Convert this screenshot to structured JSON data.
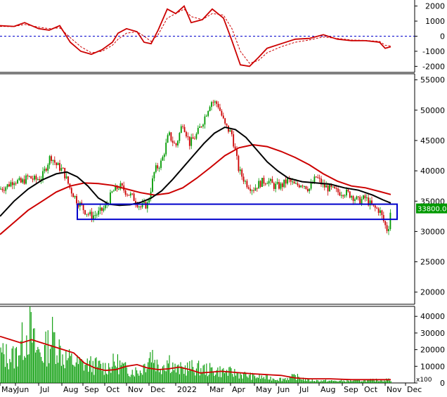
{
  "chart_data": [
    {
      "type": "line",
      "panel": "indicator",
      "ylim": [
        -2400,
        2400
      ],
      "yticks": [
        2000,
        1000,
        0,
        -1000,
        -2000
      ],
      "zero_line": {
        "value": 0,
        "style": "dashed",
        "color": "#0000cc"
      },
      "series": [
        {
          "color": "#cc0000",
          "style": "solid",
          "points": [
            [
              0,
              700
            ],
            [
              20,
              650
            ],
            [
              35,
              900
            ],
            [
              55,
              500
            ],
            [
              70,
              400
            ],
            [
              85,
              700
            ],
            [
              100,
              -400
            ],
            [
              115,
              -1000
            ],
            [
              130,
              -1200
            ],
            [
              145,
              -900
            ],
            [
              160,
              -400
            ],
            [
              168,
              200
            ],
            [
              180,
              500
            ],
            [
              195,
              300
            ],
            [
              205,
              -400
            ],
            [
              215,
              -500
            ],
            [
              225,
              400
            ],
            [
              238,
              1800
            ],
            [
              250,
              1500
            ],
            [
              262,
              2000
            ],
            [
              272,
              900
            ],
            [
              288,
              1100
            ],
            [
              302,
              1800
            ],
            [
              318,
              1200
            ],
            [
              330,
              -300
            ],
            [
              342,
              -1900
            ],
            [
              355,
              -2000
            ],
            [
              368,
              -1400
            ],
            [
              380,
              -800
            ],
            [
              400,
              -500
            ],
            [
              420,
              -200
            ],
            [
              440,
              -150
            ],
            [
              460,
              100
            ],
            [
              480,
              -200
            ],
            [
              500,
              -300
            ],
            [
              520,
              -300
            ],
            [
              540,
              -400
            ],
            [
              548,
              -800
            ],
            [
              556,
              -700
            ]
          ]
        },
        {
          "color": "#cc0000",
          "style": "dashed",
          "points": [
            [
              0,
              650
            ],
            [
              20,
              640
            ],
            [
              35,
              780
            ],
            [
              55,
              600
            ],
            [
              70,
              500
            ],
            [
              85,
              550
            ],
            [
              100,
              -100
            ],
            [
              115,
              -700
            ],
            [
              130,
              -1100
            ],
            [
              145,
              -1000
            ],
            [
              160,
              -600
            ],
            [
              168,
              -200
            ],
            [
              180,
              200
            ],
            [
              195,
              300
            ],
            [
              205,
              0
            ],
            [
              215,
              -350
            ],
            [
              225,
              100
            ],
            [
              238,
              1200
            ],
            [
              250,
              1500
            ],
            [
              262,
              1800
            ],
            [
              272,
              1300
            ],
            [
              288,
              1100
            ],
            [
              302,
              1500
            ],
            [
              318,
              1400
            ],
            [
              330,
              500
            ],
            [
              342,
              -1000
            ],
            [
              355,
              -1800
            ],
            [
              368,
              -1600
            ],
            [
              380,
              -1100
            ],
            [
              400,
              -700
            ],
            [
              420,
              -400
            ],
            [
              440,
              -250
            ],
            [
              460,
              -50
            ],
            [
              480,
              -150
            ],
            [
              500,
              -250
            ],
            [
              520,
              -280
            ],
            [
              540,
              -350
            ],
            [
              548,
              -600
            ],
            [
              556,
              -650
            ]
          ]
        }
      ]
    },
    {
      "type": "line",
      "panel": "price",
      "ylim": [
        18000,
        56000
      ],
      "yticks": [
        55000,
        50000,
        45000,
        40000,
        35000,
        30000,
        25000,
        20000
      ],
      "last_price_label": "33800.00",
      "last_price": 33800,
      "highlight_box": {
        "color": "#0000cc",
        "x_range": [
          110,
          565
        ],
        "y_range": [
          32000,
          34500
        ]
      },
      "series": [
        {
          "name": "price",
          "color": "#009900",
          "style": "candle-approx",
          "points": [
            [
              0,
              37000
            ],
            [
              10,
              37500
            ],
            [
              20,
              38500
            ],
            [
              30,
              38000
            ],
            [
              40,
              39000
            ],
            [
              50,
              38500
            ],
            [
              60,
              39000
            ],
            [
              72,
              42500
            ],
            [
              80,
              41000
            ],
            [
              90,
              40000
            ],
            [
              100,
              37000
            ],
            [
              110,
              35000
            ],
            [
              120,
              33500
            ],
            [
              130,
              32500
            ],
            [
              140,
              33000
            ],
            [
              150,
              34000
            ],
            [
              160,
              36500
            ],
            [
              170,
              37500
            ],
            [
              180,
              36500
            ],
            [
              190,
              35500
            ],
            [
              200,
              34000
            ],
            [
              210,
              34500
            ],
            [
              220,
              40000
            ],
            [
              230,
              41500
            ],
            [
              240,
              46000
            ],
            [
              250,
              44000
            ],
            [
              260,
              48000
            ],
            [
              270,
              44500
            ],
            [
              280,
              46000
            ],
            [
              290,
              48500
            ],
            [
              300,
              51500
            ],
            [
              310,
              51000
            ],
            [
              320,
              47500
            ],
            [
              330,
              46000
            ],
            [
              340,
              40000
            ],
            [
              350,
              38000
            ],
            [
              360,
              37000
            ],
            [
              370,
              38000
            ],
            [
              380,
              38500
            ],
            [
              390,
              37500
            ],
            [
              400,
              37500
            ],
            [
              410,
              38500
            ],
            [
              420,
              37500
            ],
            [
              430,
              38000
            ],
            [
              440,
              37000
            ],
            [
              450,
              39000
            ],
            [
              460,
              37500
            ],
            [
              470,
              37000
            ],
            [
              480,
              36500
            ],
            [
              490,
              36500
            ],
            [
              500,
              36000
            ],
            [
              510,
              35000
            ],
            [
              520,
              35500
            ],
            [
              530,
              34000
            ],
            [
              540,
              33500
            ],
            [
              548,
              31000
            ],
            [
              552,
              30000
            ],
            [
              556,
              33800
            ]
          ]
        },
        {
          "name": "ma-short",
          "color": "#000000",
          "style": "solid",
          "points": [
            [
              0,
              32500
            ],
            [
              20,
              35000
            ],
            [
              40,
              37000
            ],
            [
              60,
              38500
            ],
            [
              80,
              39500
            ],
            [
              95,
              39800
            ],
            [
              110,
              39000
            ],
            [
              125,
              37500
            ],
            [
              140,
              35500
            ],
            [
              155,
              34500
            ],
            [
              170,
              34300
            ],
            [
              185,
              34400
            ],
            [
              200,
              34800
            ],
            [
              215,
              35500
            ],
            [
              230,
              36700
            ],
            [
              245,
              38500
            ],
            [
              260,
              40500
            ],
            [
              275,
              42500
            ],
            [
              290,
              44500
            ],
            [
              305,
              46200
            ],
            [
              320,
              47200
            ],
            [
              335,
              46800
            ],
            [
              350,
              45500
            ],
            [
              365,
              43500
            ],
            [
              380,
              41500
            ],
            [
              395,
              40000
            ],
            [
              410,
              38800
            ],
            [
              430,
              38200
            ],
            [
              450,
              38000
            ],
            [
              470,
              37800
            ],
            [
              490,
              37200
            ],
            [
              510,
              36800
            ],
            [
              530,
              36000
            ],
            [
              545,
              35200
            ],
            [
              556,
              34700
            ]
          ]
        },
        {
          "name": "ma-long",
          "color": "#cc0000",
          "style": "solid",
          "points": [
            [
              0,
              29500
            ],
            [
              20,
              31500
            ],
            [
              40,
              33500
            ],
            [
              60,
              35000
            ],
            [
              80,
              36500
            ],
            [
              100,
              37500
            ],
            [
              120,
              38000
            ],
            [
              140,
              37900
            ],
            [
              160,
              37600
            ],
            [
              180,
              37000
            ],
            [
              200,
              36400
            ],
            [
              220,
              36000
            ],
            [
              240,
              36300
            ],
            [
              260,
              37200
            ],
            [
              280,
              38800
            ],
            [
              300,
              40600
            ],
            [
              320,
              42500
            ],
            [
              340,
              43800
            ],
            [
              360,
              44300
            ],
            [
              380,
              44000
            ],
            [
              400,
              43200
            ],
            [
              420,
              42200
            ],
            [
              440,
              41000
            ],
            [
              460,
              39500
            ],
            [
              480,
              38300
            ],
            [
              500,
              37500
            ],
            [
              520,
              37200
            ],
            [
              540,
              36600
            ],
            [
              556,
              36100
            ]
          ]
        }
      ]
    },
    {
      "type": "bar",
      "panel": "volume",
      "ylim": [
        0,
        46000
      ],
      "yticks": [
        40000,
        30000,
        20000,
        10000,
        0
      ],
      "unit_label": "x100",
      "bar_color": "#009900",
      "bar_profile": [
        [
          0,
          22000
        ],
        [
          20,
          20000
        ],
        [
          42,
          42000
        ],
        [
          50,
          26000
        ],
        [
          60,
          22000
        ],
        [
          75,
          36000
        ],
        [
          90,
          20000
        ],
        [
          110,
          15000
        ],
        [
          130,
          14000
        ],
        [
          150,
          12000
        ],
        [
          165,
          16000
        ],
        [
          180,
          10000
        ],
        [
          200,
          9000
        ],
        [
          215,
          24000
        ],
        [
          225,
          12000
        ],
        [
          240,
          18000
        ],
        [
          250,
          10000
        ],
        [
          270,
          12000
        ],
        [
          300,
          10000
        ],
        [
          330,
          8000
        ],
        [
          360,
          5000
        ],
        [
          400,
          3000
        ],
        [
          420,
          5000
        ],
        [
          440,
          2000
        ],
        [
          480,
          1500
        ],
        [
          520,
          2000
        ],
        [
          556,
          2500
        ]
      ],
      "series": [
        {
          "color": "#cc0000",
          "style": "solid",
          "points": [
            [
              0,
              28000
            ],
            [
              15,
              26000
            ],
            [
              30,
              24000
            ],
            [
              45,
              26000
            ],
            [
              60,
              24000
            ],
            [
              75,
              22000
            ],
            [
              90,
              20000
            ],
            [
              105,
              18000
            ],
            [
              120,
              12000
            ],
            [
              135,
              9000
            ],
            [
              150,
              7500
            ],
            [
              165,
              8000
            ],
            [
              180,
              10000
            ],
            [
              195,
              11000
            ],
            [
              210,
              9000
            ],
            [
              225,
              8000
            ],
            [
              240,
              8500
            ],
            [
              255,
              9500
            ],
            [
              270,
              8000
            ],
            [
              285,
              6000
            ],
            [
              300,
              6500
            ],
            [
              315,
              7000
            ],
            [
              330,
              6500
            ],
            [
              345,
              6000
            ],
            [
              360,
              5500
            ],
            [
              380,
              5000
            ],
            [
              400,
              4500
            ],
            [
              420,
              3000
            ],
            [
              440,
              2500
            ],
            [
              470,
              2500
            ],
            [
              500,
              2000
            ],
            [
              530,
              2000
            ],
            [
              556,
              2000
            ]
          ]
        }
      ]
    },
    {
      "type": "axis",
      "panel": "time",
      "x_labels": [
        "May",
        "Jun",
        "Jul",
        "Aug",
        "Sep",
        "Oct",
        "Nov",
        "Dec",
        "2022",
        "Mar",
        "Apr",
        "May",
        "Jun",
        "Jul",
        "Aug",
        "Sep",
        "Oct",
        "Nov",
        "Dec"
      ],
      "x_positions": [
        0,
        22,
        55,
        88,
        118,
        149,
        180,
        212,
        250,
        296,
        328,
        362,
        393,
        424,
        454,
        487,
        516,
        548,
        577
      ]
    }
  ]
}
